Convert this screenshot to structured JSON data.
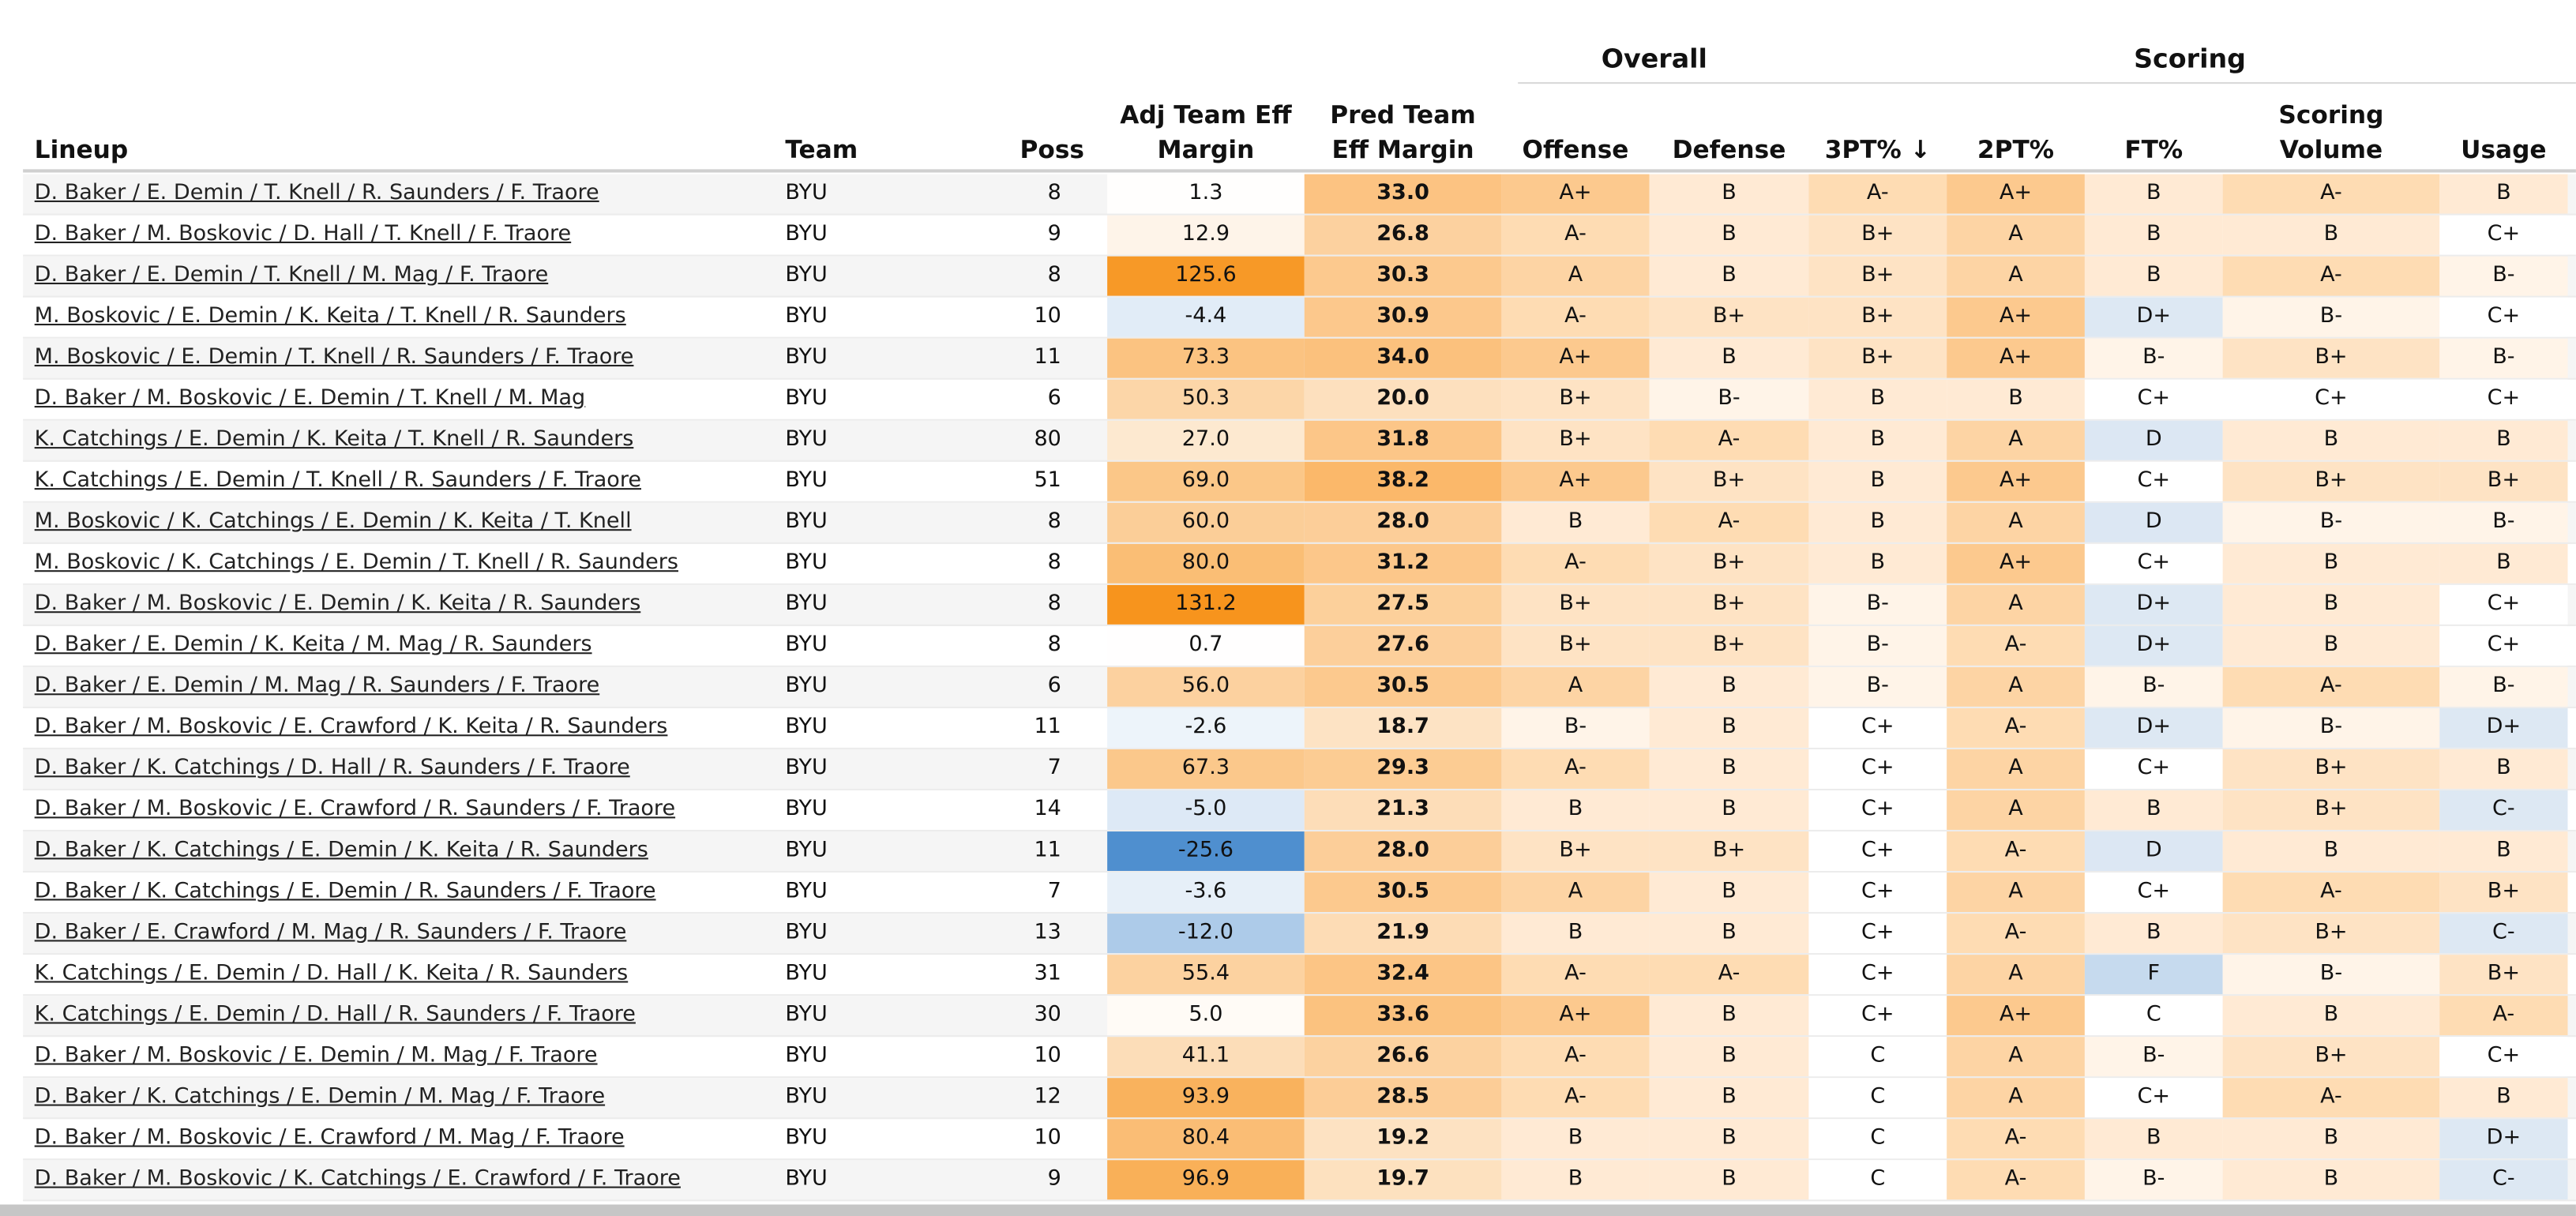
{
  "groups": {
    "overall": "Overall",
    "scoring": "Scoring"
  },
  "columns": {
    "lineup": "Lineup",
    "team": "Team",
    "poss": "Poss",
    "adj_line1": "Adj Team Eff",
    "adj_line2": "Margin",
    "pred_line1": "Pred Team",
    "pred_line2": "Eff Margin",
    "offense": "Offense",
    "defense": "Defense",
    "three_pt": "3PT% ↓",
    "two_pt": "2PT%",
    "ft": "FT%",
    "scoring_line1": "Scoring",
    "scoring_line2": "Volume",
    "usage": "Usage"
  },
  "colors": {
    "grade": {
      "A+": "#fcc98e",
      "A": "#fdd4a4",
      "A-": "#fedcb3",
      "B+": "#fee3c4",
      "B": "#ffead4",
      "B-": "#fff4e8",
      "C+": "#ffffff",
      "C": "#ffffff",
      "C-": "#dde8f3",
      "D+": "#dde8f3",
      "D": "#dce7f3",
      "F": "#c6daee"
    },
    "orange_scale": "#f7941d",
    "blue_scale": "#4f8fcf"
  },
  "rows": [
    {
      "lineup": "D. Baker / E. Demin / T. Knell / R. Saunders / F. Traore",
      "team": "BYU",
      "poss": "8",
      "adj": "1.3",
      "pred": "33.0",
      "offense": "A+",
      "defense": "B",
      "three_pt": "A-",
      "two_pt": "A+",
      "ft": "B",
      "scoring": "A-",
      "usage": "B"
    },
    {
      "lineup": "D. Baker / M. Boskovic / D. Hall / T. Knell / F. Traore",
      "team": "BYU",
      "poss": "9",
      "adj": "12.9",
      "pred": "26.8",
      "offense": "A-",
      "defense": "B",
      "three_pt": "B+",
      "two_pt": "A",
      "ft": "B",
      "scoring": "B",
      "usage": "C+"
    },
    {
      "lineup": "D. Baker / E. Demin / T. Knell / M. Mag / F. Traore",
      "team": "BYU",
      "poss": "8",
      "adj": "125.6",
      "pred": "30.3",
      "offense": "A",
      "defense": "B",
      "three_pt": "B+",
      "two_pt": "A",
      "ft": "B",
      "scoring": "A-",
      "usage": "B-"
    },
    {
      "lineup": "M. Boskovic / E. Demin / K. Keita / T. Knell / R. Saunders",
      "team": "BYU",
      "poss": "10",
      "adj": "-4.4",
      "pred": "30.9",
      "offense": "A-",
      "defense": "B+",
      "three_pt": "B+",
      "two_pt": "A+",
      "ft": "D+",
      "scoring": "B-",
      "usage": "C+"
    },
    {
      "lineup": "M. Boskovic / E. Demin / T. Knell / R. Saunders / F. Traore",
      "team": "BYU",
      "poss": "11",
      "adj": "73.3",
      "pred": "34.0",
      "offense": "A+",
      "defense": "B",
      "three_pt": "B+",
      "two_pt": "A+",
      "ft": "B-",
      "scoring": "B+",
      "usage": "B-"
    },
    {
      "lineup": "D. Baker / M. Boskovic / E. Demin / T. Knell / M. Mag",
      "team": "BYU",
      "poss": "6",
      "adj": "50.3",
      "pred": "20.0",
      "offense": "B+",
      "defense": "B-",
      "three_pt": "B",
      "two_pt": "B",
      "ft": "C+",
      "scoring": "C+",
      "usage": "C+"
    },
    {
      "lineup": "K. Catchings / E. Demin / K. Keita / T. Knell / R. Saunders",
      "team": "BYU",
      "poss": "80",
      "adj": "27.0",
      "pred": "31.8",
      "offense": "B+",
      "defense": "A-",
      "three_pt": "B",
      "two_pt": "A",
      "ft": "D",
      "scoring": "B",
      "usage": "B"
    },
    {
      "lineup": "K. Catchings / E. Demin / T. Knell / R. Saunders / F. Traore",
      "team": "BYU",
      "poss": "51",
      "adj": "69.0",
      "pred": "38.2",
      "offense": "A+",
      "defense": "B+",
      "three_pt": "B",
      "two_pt": "A+",
      "ft": "C+",
      "scoring": "B+",
      "usage": "B+"
    },
    {
      "lineup": "M. Boskovic / K. Catchings / E. Demin / K. Keita / T. Knell",
      "team": "BYU",
      "poss": "8",
      "adj": "60.0",
      "pred": "28.0",
      "offense": "B",
      "defense": "A-",
      "three_pt": "B",
      "two_pt": "A",
      "ft": "D",
      "scoring": "B-",
      "usage": "B-"
    },
    {
      "lineup": "M. Boskovic / K. Catchings / E. Demin / T. Knell / R. Saunders",
      "team": "BYU",
      "poss": "8",
      "adj": "80.0",
      "pred": "31.2",
      "offense": "A-",
      "defense": "B+",
      "three_pt": "B",
      "two_pt": "A+",
      "ft": "C+",
      "scoring": "B",
      "usage": "B"
    },
    {
      "lineup": "D. Baker / M. Boskovic / E. Demin / K. Keita / R. Saunders",
      "team": "BYU",
      "poss": "8",
      "adj": "131.2",
      "pred": "27.5",
      "offense": "B+",
      "defense": "B+",
      "three_pt": "B-",
      "two_pt": "A",
      "ft": "D+",
      "scoring": "B",
      "usage": "C+"
    },
    {
      "lineup": "D. Baker / E. Demin / K. Keita / M. Mag / R. Saunders",
      "team": "BYU",
      "poss": "8",
      "adj": "0.7",
      "pred": "27.6",
      "offense": "B+",
      "defense": "B+",
      "three_pt": "B-",
      "two_pt": "A-",
      "ft": "D+",
      "scoring": "B",
      "usage": "C+"
    },
    {
      "lineup": "D. Baker / E. Demin / M. Mag / R. Saunders / F. Traore",
      "team": "BYU",
      "poss": "6",
      "adj": "56.0",
      "pred": "30.5",
      "offense": "A",
      "defense": "B",
      "three_pt": "B-",
      "two_pt": "A",
      "ft": "B-",
      "scoring": "A-",
      "usage": "B-"
    },
    {
      "lineup": "D. Baker / M. Boskovic / E. Crawford / K. Keita / R. Saunders",
      "team": "BYU",
      "poss": "11",
      "adj": "-2.6",
      "pred": "18.7",
      "offense": "B-",
      "defense": "B",
      "three_pt": "C+",
      "two_pt": "A-",
      "ft": "D+",
      "scoring": "B-",
      "usage": "D+"
    },
    {
      "lineup": "D. Baker / K. Catchings / D. Hall / R. Saunders / F. Traore",
      "team": "BYU",
      "poss": "7",
      "adj": "67.3",
      "pred": "29.3",
      "offense": "A-",
      "defense": "B",
      "three_pt": "C+",
      "two_pt": "A",
      "ft": "C+",
      "scoring": "B+",
      "usage": "B"
    },
    {
      "lineup": "D. Baker / M. Boskovic / E. Crawford / R. Saunders / F. Traore",
      "team": "BYU",
      "poss": "14",
      "adj": "-5.0",
      "pred": "21.3",
      "offense": "B",
      "defense": "B",
      "three_pt": "C+",
      "two_pt": "A",
      "ft": "B",
      "scoring": "B+",
      "usage": "C-"
    },
    {
      "lineup": "D. Baker / K. Catchings / E. Demin / K. Keita / R. Saunders",
      "team": "BYU",
      "poss": "11",
      "adj": "-25.6",
      "pred": "28.0",
      "offense": "B+",
      "defense": "B+",
      "three_pt": "C+",
      "two_pt": "A-",
      "ft": "D",
      "scoring": "B",
      "usage": "B"
    },
    {
      "lineup": "D. Baker / K. Catchings / E. Demin / R. Saunders / F. Traore",
      "team": "BYU",
      "poss": "7",
      "adj": "-3.6",
      "pred": "30.5",
      "offense": "A",
      "defense": "B",
      "three_pt": "C+",
      "two_pt": "A",
      "ft": "C+",
      "scoring": "A-",
      "usage": "B+"
    },
    {
      "lineup": "D. Baker / E. Crawford / M. Mag / R. Saunders / F. Traore",
      "team": "BYU",
      "poss": "13",
      "adj": "-12.0",
      "pred": "21.9",
      "offense": "B",
      "defense": "B",
      "three_pt": "C+",
      "two_pt": "A-",
      "ft": "B",
      "scoring": "B+",
      "usage": "C-"
    },
    {
      "lineup": "K. Catchings / E. Demin / D. Hall / K. Keita / R. Saunders",
      "team": "BYU",
      "poss": "31",
      "adj": "55.4",
      "pred": "32.4",
      "offense": "A-",
      "defense": "A-",
      "three_pt": "C+",
      "two_pt": "A",
      "ft": "F",
      "scoring": "B-",
      "usage": "B+"
    },
    {
      "lineup": "K. Catchings / E. Demin / D. Hall / R. Saunders / F. Traore",
      "team": "BYU",
      "poss": "30",
      "adj": "5.0",
      "pred": "33.6",
      "offense": "A+",
      "defense": "B",
      "three_pt": "C+",
      "two_pt": "A+",
      "ft": "C",
      "scoring": "B",
      "usage": "A-"
    },
    {
      "lineup": "D. Baker / M. Boskovic / E. Demin / M. Mag / F. Traore",
      "team": "BYU",
      "poss": "10",
      "adj": "41.1",
      "pred": "26.6",
      "offense": "A-",
      "defense": "B",
      "three_pt": "C",
      "two_pt": "A",
      "ft": "B-",
      "scoring": "B+",
      "usage": "C+"
    },
    {
      "lineup": "D. Baker / K. Catchings / E. Demin / M. Mag / F. Traore",
      "team": "BYU",
      "poss": "12",
      "adj": "93.9",
      "pred": "28.5",
      "offense": "A-",
      "defense": "B",
      "three_pt": "C",
      "two_pt": "A",
      "ft": "C+",
      "scoring": "A-",
      "usage": "B"
    },
    {
      "lineup": "D. Baker / M. Boskovic / E. Crawford / M. Mag / F. Traore",
      "team": "BYU",
      "poss": "10",
      "adj": "80.4",
      "pred": "19.2",
      "offense": "B",
      "defense": "B",
      "three_pt": "C",
      "two_pt": "A-",
      "ft": "B",
      "scoring": "B",
      "usage": "D+"
    },
    {
      "lineup": "D. Baker / M. Boskovic / K. Catchings / E. Crawford / F. Traore",
      "team": "BYU",
      "poss": "9",
      "adj": "96.9",
      "pred": "19.7",
      "offense": "B",
      "defense": "B",
      "three_pt": "C",
      "two_pt": "A-",
      "ft": "B-",
      "scoring": "B",
      "usage": "C-"
    }
  ]
}
